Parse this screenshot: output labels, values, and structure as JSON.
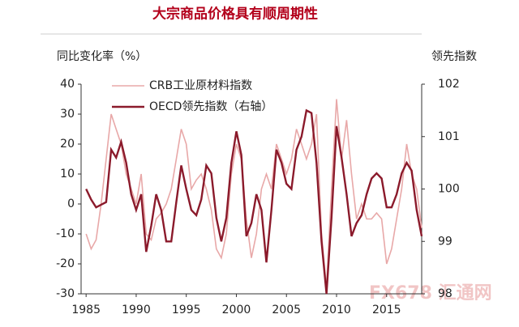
{
  "chart_data": {
    "type": "line",
    "title": "大宗商品价格具有顺周期性",
    "y_label": "同比变化率（%）",
    "y2_label": "领先指数",
    "watermark": "FX678 汇通网",
    "x": [
      1985,
      1985.5,
      1986,
      1986.5,
      1987,
      1987.5,
      1988,
      1988.5,
      1989,
      1989.5,
      1990,
      1990.5,
      1991,
      1991.5,
      1992,
      1992.5,
      1993,
      1993.5,
      1994,
      1994.5,
      1995,
      1995.5,
      1996,
      1996.5,
      1997,
      1997.5,
      1998,
      1998.5,
      1999,
      1999.5,
      2000,
      2000.5,
      2001,
      2001.5,
      2002,
      2002.5,
      2003,
      2003.5,
      2004,
      2004.5,
      2005,
      2005.5,
      2006,
      2006.5,
      2007,
      2007.5,
      2008,
      2008.5,
      2009,
      2009.5,
      2010,
      2010.5,
      2011,
      2011.5,
      2012,
      2012.5,
      2013,
      2013.5,
      2014,
      2014.5,
      2015,
      2015.5,
      2016,
      2016.5,
      2017,
      2017.5,
      2018,
      2018.5
    ],
    "series": [
      {
        "name": "CRB工业原材料指数",
        "color": "#e8a8a8",
        "values": [
          -10,
          -15,
          -12,
          0,
          15,
          30,
          25,
          20,
          10,
          5,
          0,
          10,
          -10,
          -12,
          -5,
          -3,
          0,
          5,
          15,
          25,
          20,
          5,
          8,
          10,
          5,
          -2,
          -15,
          -18,
          -10,
          10,
          20,
          15,
          -5,
          -18,
          -10,
          5,
          10,
          5,
          20,
          15,
          10,
          15,
          25,
          20,
          15,
          20,
          30,
          -10,
          -28,
          5,
          35,
          15,
          28,
          10,
          -5,
          0,
          -5,
          -5,
          -3,
          -5,
          -20,
          -15,
          -5,
          5,
          20,
          10,
          5,
          -8
        ]
      },
      {
        "name": "OECD领先指数（右轴）",
        "color": "#8b1a2b",
        "axis": "y2",
        "values": [
          100.0,
          99.8,
          99.65,
          99.7,
          99.75,
          100.75,
          100.6,
          100.9,
          100.5,
          99.9,
          99.6,
          99.9,
          98.8,
          99.3,
          99.9,
          99.6,
          99.0,
          99.0,
          99.75,
          100.45,
          100.0,
          99.6,
          99.5,
          99.8,
          100.45,
          100.3,
          99.45,
          99.0,
          99.45,
          100.5,
          101.1,
          100.65,
          99.1,
          99.35,
          99.9,
          99.6,
          98.6,
          99.6,
          100.75,
          100.5,
          100.1,
          100.0,
          100.75,
          101.0,
          101.5,
          101.45,
          100.5,
          99.0,
          98.0,
          99.45,
          101.2,
          100.6,
          99.9,
          99.1,
          99.35,
          99.5,
          99.9,
          100.2,
          100.3,
          100.2,
          99.65,
          99.65,
          99.9,
          100.3,
          100.5,
          100.35,
          99.6,
          99.1
        ]
      }
    ],
    "xlim": [
      1984.5,
      2018.5
    ],
    "xticks": [
      1985,
      1990,
      1995,
      2000,
      2005,
      2010,
      2015
    ],
    "ylim": [
      -30,
      40
    ],
    "yticks": [
      -30,
      -20,
      -10,
      0,
      10,
      20,
      30,
      40
    ],
    "y2lim": [
      98,
      102
    ],
    "y2ticks": [
      98,
      99,
      100,
      101,
      102
    ],
    "legend": "upper left"
  }
}
